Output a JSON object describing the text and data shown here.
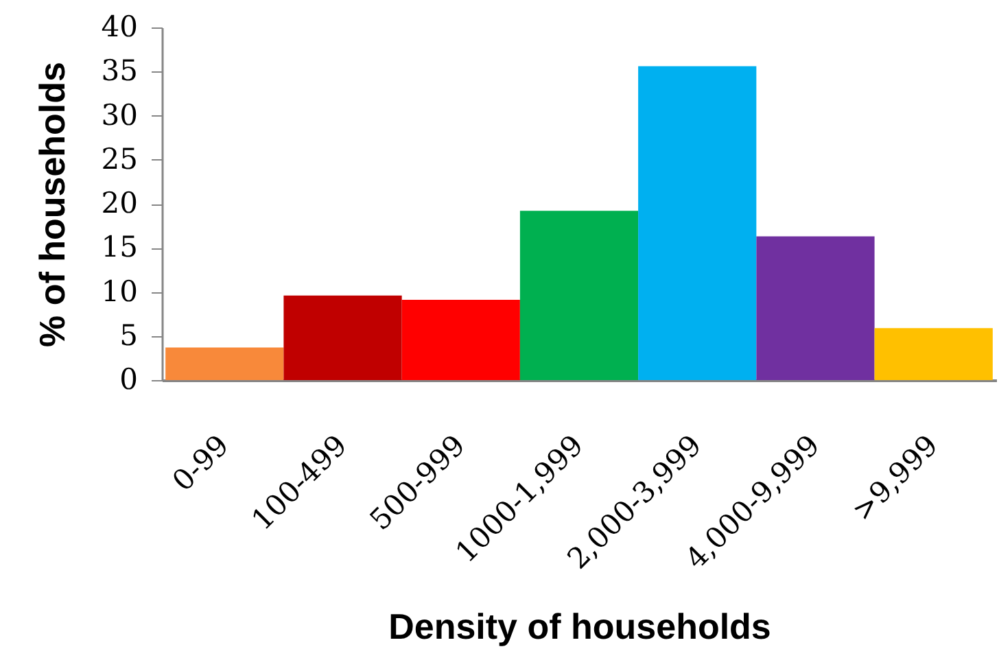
{
  "chart_data": {
    "type": "bar",
    "xlabel": "Density of households",
    "ylabel": "% of households",
    "categories": [
      "0-99",
      "100-499",
      "500-999",
      "1000-1,999",
      "2,000-3,999",
      "4,000-9,999",
      ">9,999"
    ],
    "values": [
      3.7,
      9.6,
      9.1,
      19.2,
      35.6,
      16.3,
      5.9
    ],
    "colors": [
      "#f8893a",
      "#c00000",
      "#ff0000",
      "#00b050",
      "#00b0f0",
      "#7030a0",
      "#ffc000"
    ],
    "ylim": [
      0,
      40
    ],
    "yticks": [
      0,
      5,
      10,
      15,
      20,
      25,
      30,
      35,
      40
    ],
    "grid": false,
    "legend": false
  }
}
